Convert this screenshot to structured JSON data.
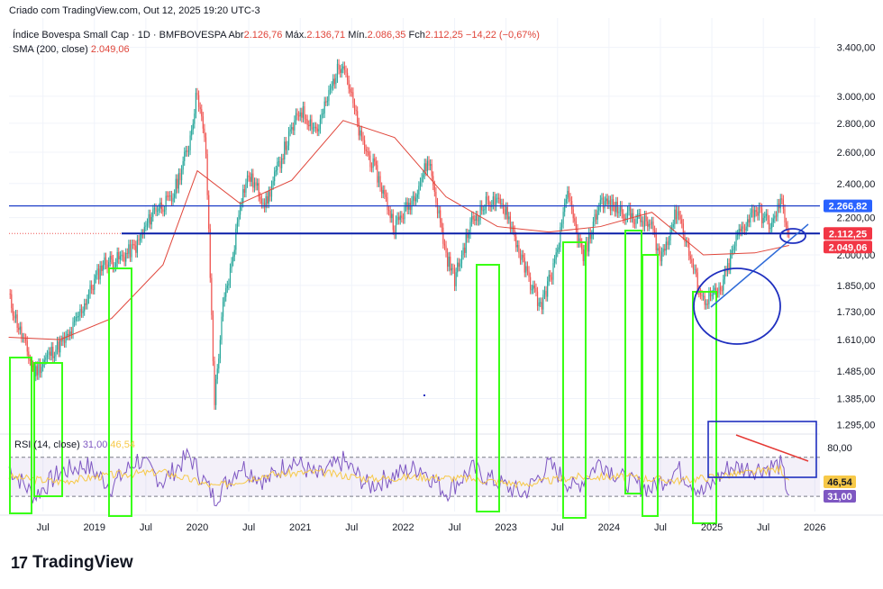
{
  "header": {
    "credit": "Criado com TradingView.com, Out 12, 2025 19:20 UTC-3"
  },
  "legend": {
    "symbol": "Índice Bovespa Small Cap · 1D · BMFBOVESPA",
    "open_label": "Abr",
    "open": "2.126,76",
    "high_label": "Máx.",
    "high": "2.136,71",
    "low_label": "Mín.",
    "low": "2.086,35",
    "close_label": "Fch",
    "close": "2.112,25",
    "change": "−14,22 (−0,67%)",
    "sma_label": "SMA (200, close)",
    "sma_value": "2.049,06"
  },
  "rsi_legend": {
    "label": "RSI (14, close)",
    "value1": "31,00",
    "value2": "46,54"
  },
  "brand": {
    "logo": "17",
    "name": "TradingView"
  },
  "colors": {
    "up": "#26a69a",
    "down": "#ef5350",
    "sma": "#e0453a",
    "hline": "#1e3fc8",
    "rect": "#39ff14",
    "rsi": "#7e57c2",
    "rsi_ma": "#f7c948",
    "annotation": "#1f2fbf"
  },
  "chart_data": [
    {
      "type": "line",
      "title": "Índice Bovespa Small Cap · 1D · BMFBOVESPA",
      "y_scale": "log",
      "ylim": [
        1300,
        3500
      ],
      "price_ticks": [
        "3.400,00",
        "3.000,00",
        "2.800,00",
        "2.600,00",
        "2.400,00",
        "2.200,00",
        "2.000,00",
        "1.850,00",
        "1.730,00",
        "1.610,00",
        "1.485,00",
        "1.385,00",
        "1.295,00"
      ],
      "price_tick_values": [
        3400,
        3000,
        2800,
        2600,
        2400,
        2200,
        2000,
        1850,
        1730,
        1610,
        1485,
        1385,
        1295
      ],
      "x_ticks": [
        "Jul",
        "2019",
        "Jul",
        "2020",
        "Jul",
        "2021",
        "Jul",
        "2022",
        "Jul",
        "2023",
        "Jul",
        "2024",
        "Jul",
        "2025",
        "Jul",
        "2026"
      ],
      "x_tick_dates": [
        "2018-07",
        "2019-01",
        "2019-07",
        "2020-01",
        "2020-07",
        "2021-01",
        "2021-07",
        "2022-01",
        "2022-07",
        "2023-01",
        "2023-07",
        "2024-01",
        "2024-07",
        "2025-01",
        "2025-07",
        "2026-01"
      ],
      "series": [
        {
          "name": "Índice Bovespa Small Cap",
          "x": [
            "2018-03",
            "2018-04",
            "2018-06",
            "2018-08",
            "2018-10",
            "2018-12",
            "2019-02",
            "2019-04",
            "2019-06",
            "2019-08",
            "2019-10",
            "2019-12",
            "2020-01",
            "2020-02",
            "2020-03",
            "2020-04",
            "2020-05",
            "2020-06",
            "2020-07",
            "2020-09",
            "2020-11",
            "2021-01",
            "2021-03",
            "2021-05",
            "2021-06",
            "2021-08",
            "2021-10",
            "2021-12",
            "2022-02",
            "2022-04",
            "2022-06",
            "2022-07",
            "2022-09",
            "2022-11",
            "2023-01",
            "2023-03",
            "2023-05",
            "2023-07",
            "2023-08",
            "2023-10",
            "2023-12",
            "2024-02",
            "2024-04",
            "2024-06",
            "2024-07",
            "2024-09",
            "2024-11",
            "2024-12",
            "2025-02",
            "2025-04",
            "2025-06",
            "2025-08",
            "2025-09",
            "2025-10"
          ],
          "y": [
            1800,
            1680,
            1480,
            1560,
            1620,
            1780,
            1960,
            1980,
            2050,
            2250,
            2300,
            2650,
            3050,
            2600,
            1380,
            1750,
            1950,
            2300,
            2450,
            2280,
            2600,
            2900,
            2750,
            3150,
            3300,
            2700,
            2450,
            2150,
            2300,
            2550,
            2000,
            1880,
            2180,
            2300,
            2250,
            1950,
            1750,
            2000,
            2350,
            1980,
            2300,
            2250,
            2200,
            2150,
            1980,
            2250,
            1900,
            1780,
            1820,
            2100,
            2250,
            2150,
            2300,
            2112
          ]
        },
        {
          "name": "SMA (200, close)",
          "x": [
            "2018-03",
            "2018-09",
            "2019-03",
            "2019-09",
            "2020-01",
            "2020-06",
            "2020-12",
            "2021-06",
            "2021-12",
            "2022-06",
            "2022-12",
            "2023-06",
            "2023-12",
            "2024-06",
            "2024-12",
            "2025-06",
            "2025-10"
          ],
          "y": [
            1620,
            1610,
            1700,
            1950,
            2480,
            2280,
            2420,
            2820,
            2700,
            2320,
            2150,
            2120,
            2150,
            2230,
            2000,
            2010,
            2049
          ]
        }
      ],
      "price_labels": [
        {
          "value": "2.266,82",
          "color": "#2962ff"
        },
        {
          "value": "2.112,25",
          "color": "#f23645"
        },
        {
          "value": "2.049,06",
          "color": "#f23645"
        }
      ],
      "horizontal_lines": [
        2266.82,
        2112.25
      ]
    },
    {
      "type": "line",
      "title": "RSI (14, close)",
      "ylim": [
        20,
        90
      ],
      "ticks": [
        "80,00"
      ],
      "tick_values": [
        80
      ],
      "bands": [
        70,
        30
      ],
      "series": [
        {
          "name": "RSI",
          "x": [
            "2018-03",
            "2018-06",
            "2018-09",
            "2018-12",
            "2019-03",
            "2019-06",
            "2019-09",
            "2019-12",
            "2020-03",
            "2020-06",
            "2020-09",
            "2020-12",
            "2021-03",
            "2021-06",
            "2021-09",
            "2021-12",
            "2022-03",
            "2022-06",
            "2022-09",
            "2022-12",
            "2023-03",
            "2023-06",
            "2023-09",
            "2023-12",
            "2024-03",
            "2024-06",
            "2024-09",
            "2024-12",
            "2025-03",
            "2025-06",
            "2025-09",
            "2025-10"
          ],
          "y": [
            60,
            30,
            55,
            62,
            40,
            68,
            45,
            72,
            28,
            62,
            45,
            68,
            50,
            66,
            40,
            52,
            60,
            34,
            58,
            44,
            32,
            62,
            38,
            66,
            45,
            38,
            58,
            33,
            60,
            58,
            62,
            31
          ]
        },
        {
          "name": "RSI-based MA",
          "x": [
            "2018-03",
            "2018-09",
            "2019-03",
            "2019-09",
            "2020-03",
            "2020-09",
            "2021-03",
            "2021-09",
            "2022-03",
            "2022-09",
            "2023-03",
            "2023-09",
            "2024-03",
            "2024-09",
            "2025-03",
            "2025-09",
            "2025-10"
          ],
          "y": [
            50,
            45,
            52,
            55,
            40,
            52,
            55,
            48,
            50,
            48,
            42,
            50,
            50,
            46,
            52,
            58,
            46.54
          ]
        }
      ],
      "value_labels": [
        {
          "value": "46,54",
          "color": "#f7c948"
        },
        {
          "value": "31,00",
          "color": "#7e57c2"
        }
      ]
    }
  ]
}
